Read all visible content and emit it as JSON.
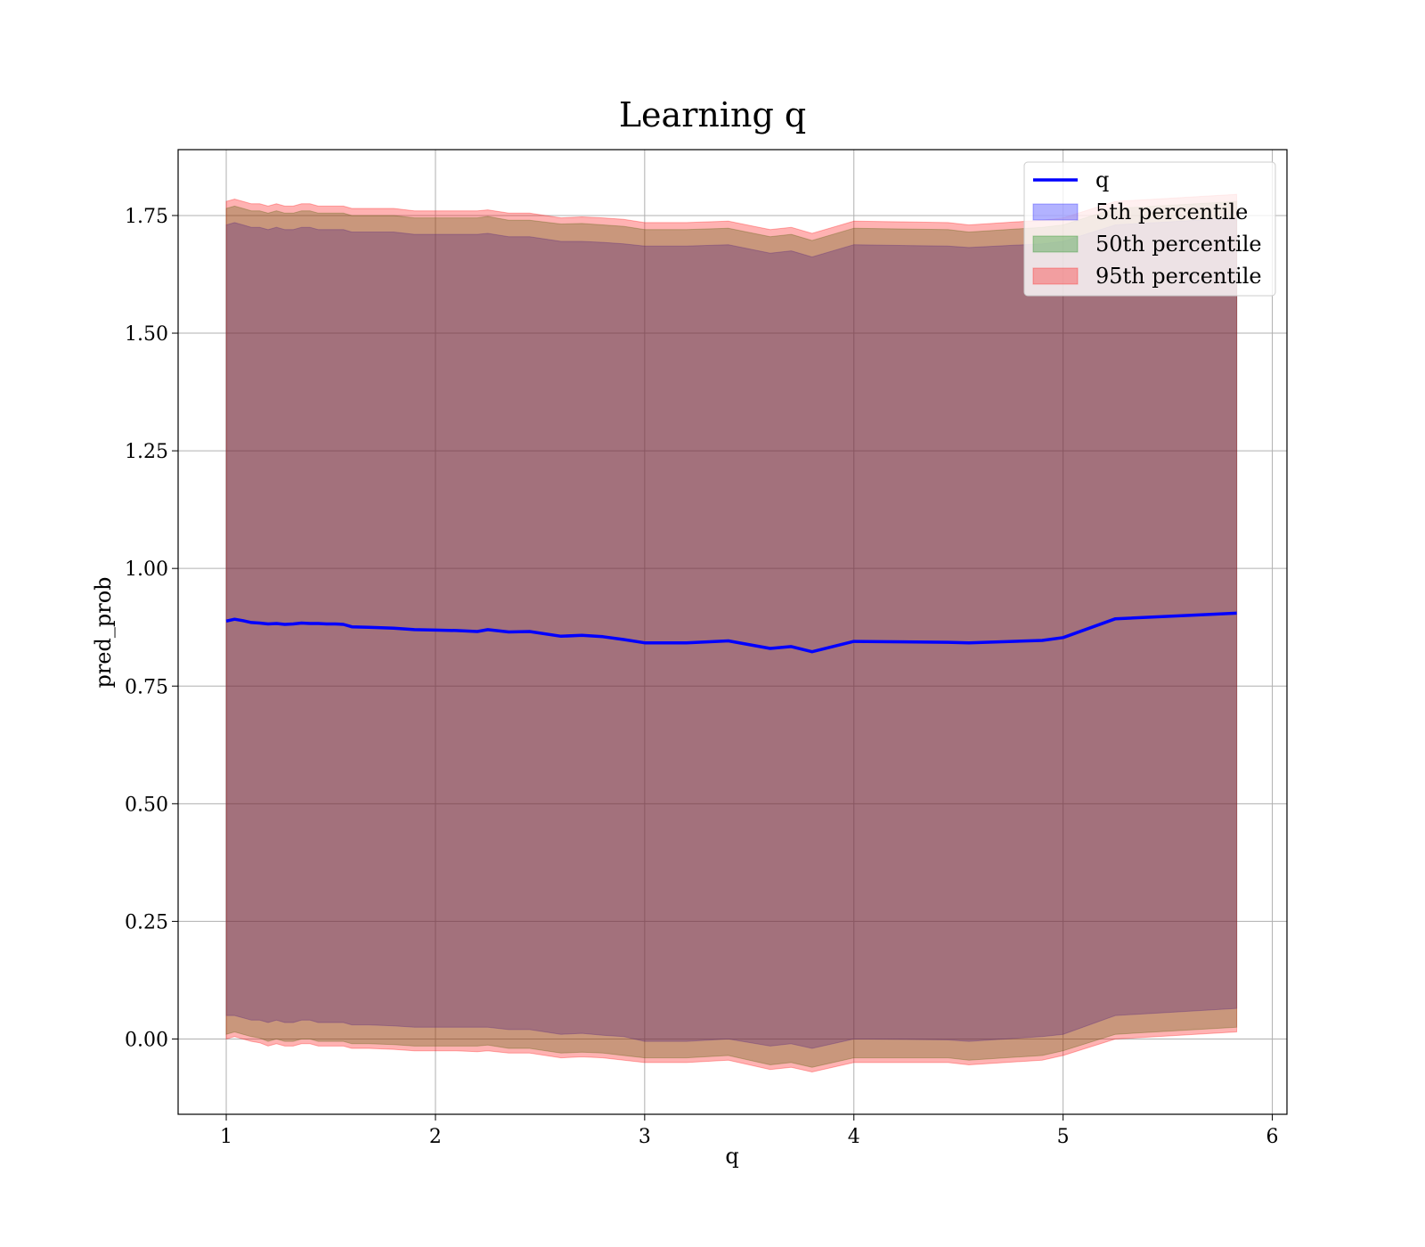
{
  "chart_data": {
    "type": "line",
    "title": "Learning q",
    "xlabel": "q",
    "ylabel": "pred_prob",
    "xlim": [
      0.77,
      6.07
    ],
    "ylim": [
      -0.16,
      1.89
    ],
    "xticks": [
      "1",
      "2",
      "3",
      "4",
      "5",
      "6"
    ],
    "xtick_values": [
      1,
      2,
      3,
      4,
      5,
      6
    ],
    "yticks": [
      "0.00",
      "0.25",
      "0.50",
      "0.75",
      "1.00",
      "1.25",
      "1.50",
      "1.75"
    ],
    "ytick_values": [
      0,
      0.25,
      0.5,
      0.75,
      1.0,
      1.25,
      1.5,
      1.75
    ],
    "grid": true,
    "legend_position": "top-right",
    "x": [
      1.0,
      1.04,
      1.08,
      1.12,
      1.16,
      1.2,
      1.24,
      1.28,
      1.32,
      1.36,
      1.4,
      1.44,
      1.48,
      1.52,
      1.56,
      1.6,
      1.68,
      1.8,
      1.9,
      2.0,
      2.1,
      2.2,
      2.25,
      2.35,
      2.45,
      2.6,
      2.7,
      2.8,
      2.9,
      3.0,
      3.2,
      3.4,
      3.6,
      3.7,
      3.8,
      4.0,
      4.45,
      4.55,
      4.9,
      5.0,
      5.25,
      5.83
    ],
    "series": [
      {
        "name": "q",
        "kind": "line",
        "color": "#0000ff",
        "values": [
          0.888,
          0.892,
          0.889,
          0.885,
          0.884,
          0.882,
          0.883,
          0.881,
          0.882,
          0.884,
          0.883,
          0.883,
          0.882,
          0.882,
          0.881,
          0.876,
          0.875,
          0.873,
          0.87,
          0.869,
          0.868,
          0.866,
          0.87,
          0.865,
          0.866,
          0.856,
          0.858,
          0.855,
          0.849,
          0.842,
          0.842,
          0.846,
          0.83,
          0.834,
          0.823,
          0.845,
          0.843,
          0.842,
          0.847,
          0.853,
          0.893,
          0.905
        ]
      },
      {
        "name": "5th percentile",
        "kind": "band",
        "color": "#0000ff",
        "opacity": 0.3,
        "lower": [
          0.05,
          0.05,
          0.045,
          0.04,
          0.04,
          0.035,
          0.04,
          0.035,
          0.035,
          0.04,
          0.04,
          0.035,
          0.035,
          0.035,
          0.035,
          0.03,
          0.03,
          0.028,
          0.025,
          0.025,
          0.025,
          0.025,
          0.025,
          0.02,
          0.02,
          0.01,
          0.012,
          0.008,
          0.005,
          -0.005,
          -0.005,
          0.0,
          -0.015,
          -0.01,
          -0.02,
          0.0,
          -0.002,
          -0.005,
          0.005,
          0.01,
          0.05,
          0.065
        ],
        "upper": [
          1.73,
          1.735,
          1.73,
          1.725,
          1.725,
          1.72,
          1.725,
          1.72,
          1.72,
          1.725,
          1.725,
          1.72,
          1.72,
          1.72,
          1.72,
          1.715,
          1.715,
          1.715,
          1.71,
          1.71,
          1.71,
          1.71,
          1.712,
          1.705,
          1.705,
          1.695,
          1.695,
          1.693,
          1.69,
          1.685,
          1.685,
          1.688,
          1.67,
          1.675,
          1.662,
          1.688,
          1.685,
          1.682,
          1.69,
          1.695,
          1.73,
          1.745
        ]
      },
      {
        "name": "50th percentile",
        "kind": "band",
        "color": "#008000",
        "opacity": 0.3,
        "lower": [
          0.01,
          0.015,
          0.01,
          0.005,
          0.002,
          -0.005,
          0.0,
          -0.005,
          -0.005,
          0.0,
          0.0,
          -0.005,
          -0.005,
          -0.005,
          -0.005,
          -0.01,
          -0.01,
          -0.012,
          -0.015,
          -0.015,
          -0.015,
          -0.015,
          -0.013,
          -0.02,
          -0.02,
          -0.03,
          -0.028,
          -0.03,
          -0.035,
          -0.04,
          -0.04,
          -0.035,
          -0.055,
          -0.05,
          -0.06,
          -0.04,
          -0.04,
          -0.045,
          -0.035,
          -0.025,
          0.01,
          0.025
        ],
        "upper": [
          1.765,
          1.77,
          1.765,
          1.76,
          1.76,
          1.755,
          1.76,
          1.755,
          1.755,
          1.76,
          1.76,
          1.755,
          1.755,
          1.755,
          1.755,
          1.75,
          1.75,
          1.75,
          1.745,
          1.745,
          1.745,
          1.745,
          1.748,
          1.74,
          1.74,
          1.732,
          1.733,
          1.73,
          1.727,
          1.72,
          1.72,
          1.723,
          1.705,
          1.71,
          1.697,
          1.723,
          1.72,
          1.715,
          1.725,
          1.73,
          1.765,
          1.78
        ]
      },
      {
        "name": "95th percentile",
        "kind": "band",
        "color": "#ff0000",
        "opacity": 0.3,
        "lower": [
          0.0,
          0.005,
          0.0,
          -0.005,
          -0.008,
          -0.015,
          -0.01,
          -0.015,
          -0.015,
          -0.01,
          -0.01,
          -0.015,
          -0.015,
          -0.015,
          -0.015,
          -0.02,
          -0.02,
          -0.022,
          -0.025,
          -0.025,
          -0.025,
          -0.027,
          -0.025,
          -0.03,
          -0.03,
          -0.04,
          -0.038,
          -0.04,
          -0.045,
          -0.05,
          -0.05,
          -0.045,
          -0.065,
          -0.06,
          -0.07,
          -0.05,
          -0.05,
          -0.055,
          -0.045,
          -0.035,
          0.0,
          0.015
        ],
        "upper": [
          1.78,
          1.785,
          1.78,
          1.775,
          1.775,
          1.77,
          1.775,
          1.77,
          1.77,
          1.775,
          1.775,
          1.77,
          1.77,
          1.77,
          1.77,
          1.765,
          1.765,
          1.765,
          1.76,
          1.76,
          1.76,
          1.76,
          1.762,
          1.755,
          1.755,
          1.745,
          1.747,
          1.745,
          1.742,
          1.735,
          1.735,
          1.738,
          1.72,
          1.725,
          1.712,
          1.738,
          1.735,
          1.73,
          1.74,
          1.745,
          1.78,
          1.795
        ]
      }
    ]
  }
}
